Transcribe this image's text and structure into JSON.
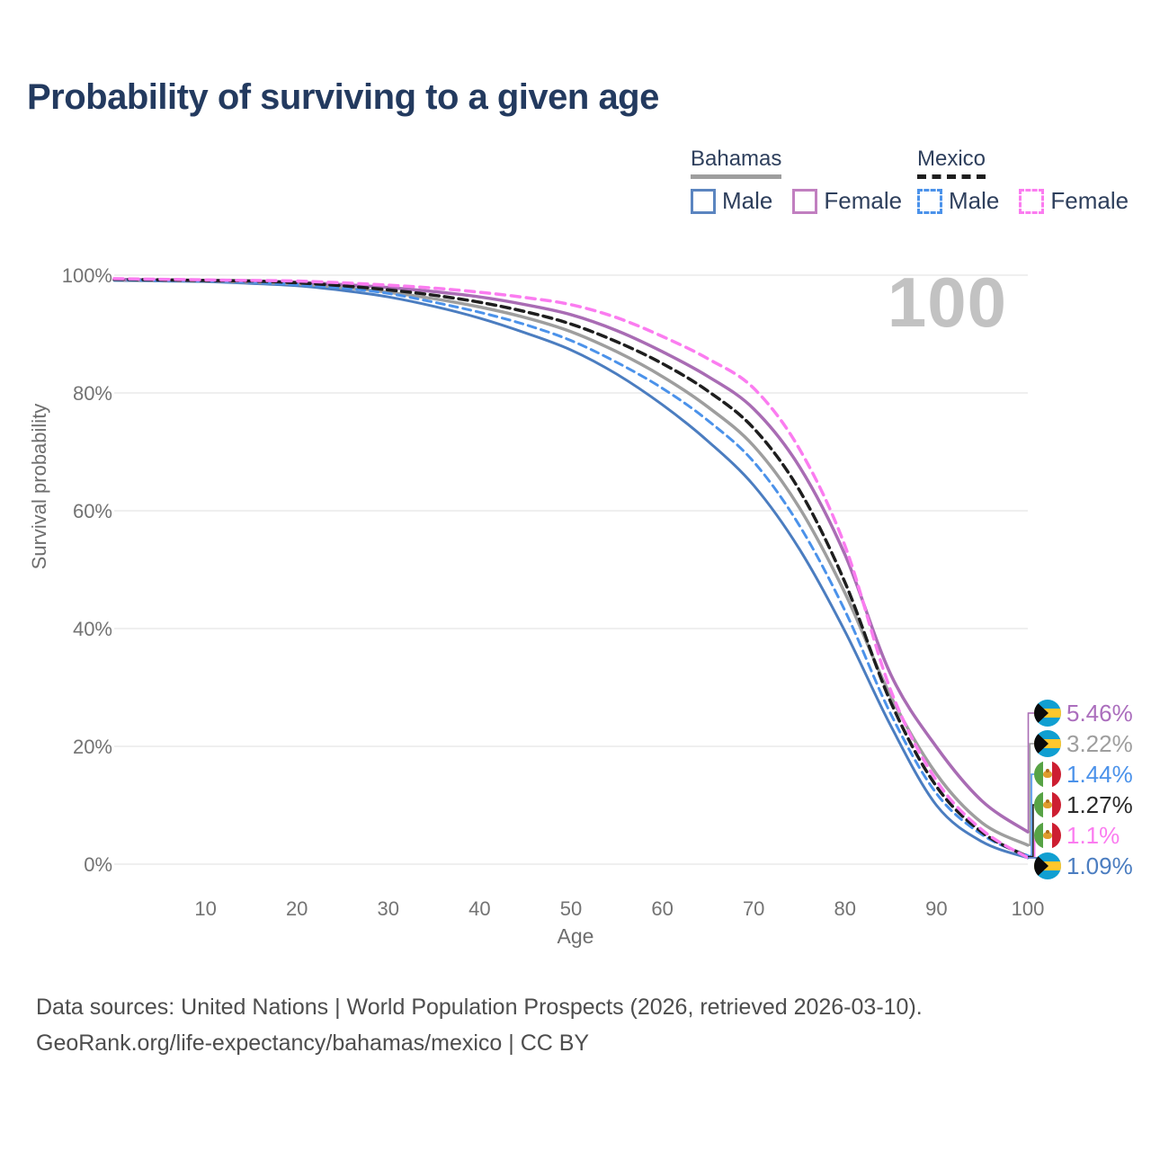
{
  "title": "Probability of surviving to a given age",
  "legend": {
    "groups": [
      {
        "title": "Bahamas",
        "line_style": "solid",
        "underline_color": "#9e9e9e",
        "items": [
          {
            "label": "Male",
            "color": "#5b85c0",
            "dashed": false
          },
          {
            "label": "Female",
            "color": "#c17fc0",
            "dashed": false
          }
        ]
      },
      {
        "title": "Mexico",
        "line_style": "dashed",
        "underline_color": "#1e1e1e",
        "items": [
          {
            "label": "Male",
            "color": "#4b92ea",
            "dashed": true
          },
          {
            "label": "Female",
            "color": "#fb7cf0",
            "dashed": true
          }
        ]
      }
    ]
  },
  "chart_data": {
    "type": "line",
    "title": "Probability of surviving to a given age",
    "xlabel": "Age",
    "ylabel": "Survival probability",
    "xlim": [
      0,
      100
    ],
    "ylim": [
      0,
      100
    ],
    "grid": "horizontal",
    "watermark": "100",
    "x_ticks": [
      10,
      20,
      30,
      40,
      50,
      60,
      70,
      80,
      90,
      100
    ],
    "y_ticks": [
      "0%",
      "20%",
      "40%",
      "60%",
      "80%",
      "100%"
    ],
    "x": [
      0,
      5,
      10,
      15,
      20,
      25,
      30,
      35,
      40,
      45,
      50,
      55,
      60,
      65,
      70,
      75,
      80,
      85,
      90,
      95,
      100
    ],
    "series": [
      {
        "id": "bahamas-male",
        "name": "Bahamas Male",
        "country": "Bahamas",
        "sex": "Male",
        "color": "#4b7dc0",
        "dash": null,
        "width": 3,
        "values": [
          99.1,
          99.0,
          98.9,
          98.6,
          98.2,
          97.4,
          96.3,
          94.7,
          92.7,
          90.2,
          87.3,
          83.2,
          78.0,
          71.8,
          64.3,
          53.5,
          39.5,
          23.5,
          10.0,
          3.8,
          1.09
        ]
      },
      {
        "id": "bahamas-total",
        "name": "Bahamas",
        "country": "Bahamas",
        "sex": "Both",
        "color": "#9e9e9e",
        "dash": null,
        "width": 3.5,
        "values": [
          99.2,
          99.1,
          99.0,
          98.8,
          98.5,
          97.9,
          97.1,
          96.0,
          94.6,
          92.8,
          90.4,
          87.0,
          82.8,
          77.6,
          71.0,
          60.5,
          46.0,
          28.5,
          15.3,
          7.0,
          3.22
        ]
      },
      {
        "id": "bahamas-female",
        "name": "Bahamas Female",
        "country": "Bahamas",
        "sex": "Female",
        "color": "#a96cb4",
        "dash": null,
        "width": 3.5,
        "values": [
          99.3,
          99.2,
          99.1,
          99.0,
          98.8,
          98.4,
          97.9,
          97.2,
          96.3,
          95.0,
          93.3,
          90.6,
          87.0,
          82.8,
          77.3,
          67.5,
          52.5,
          32.2,
          19.9,
          10.7,
          5.46
        ]
      },
      {
        "id": "mexico-male",
        "name": "Mexico Male",
        "country": "Mexico",
        "sex": "Male",
        "color": "#4b92ea",
        "dash": "9 6",
        "width": 3,
        "values": [
          99.2,
          99.1,
          99.0,
          98.8,
          98.4,
          97.8,
          96.9,
          95.4,
          93.7,
          91.6,
          88.9,
          85.2,
          80.8,
          75.3,
          68.3,
          57.5,
          43.0,
          25.5,
          12.0,
          5.0,
          1.44
        ]
      },
      {
        "id": "mexico-total",
        "name": "Mexico",
        "country": "Mexico",
        "sex": "Both",
        "color": "#1e1e1e",
        "dash": "10 6",
        "width": 3.5,
        "values": [
          99.3,
          99.2,
          99.1,
          99.0,
          98.7,
          98.2,
          97.5,
          96.6,
          95.4,
          93.8,
          91.7,
          88.7,
          85.0,
          80.3,
          74.0,
          63.5,
          47.8,
          27.5,
          13.2,
          5.4,
          1.27
        ]
      },
      {
        "id": "mexico-female",
        "name": "Mexico Female",
        "country": "Mexico",
        "sex": "Female",
        "color": "#fb7cf0",
        "dash": "10 7",
        "width": 3.5,
        "values": [
          99.4,
          99.3,
          99.2,
          99.1,
          99.0,
          98.7,
          98.3,
          97.8,
          97.1,
          96.2,
          95.0,
          92.8,
          89.6,
          85.8,
          80.8,
          70.5,
          54.0,
          29.5,
          14.2,
          5.8,
          1.1
        ]
      }
    ],
    "end_labels": [
      {
        "series": "bahamas-female",
        "text": "5.46%",
        "color": "#ab6ebd",
        "flag": "bahamas"
      },
      {
        "series": "bahamas-total",
        "text": "3.22%",
        "color": "#9e9e9e",
        "flag": "bahamas"
      },
      {
        "series": "mexico-male",
        "text": "1.44%",
        "color": "#4b92ea",
        "flag": "mexico"
      },
      {
        "series": "mexico-total",
        "text": "1.27%",
        "color": "#2a2a2a",
        "flag": "mexico"
      },
      {
        "series": "mexico-female",
        "text": "1.1%",
        "color": "#fb7cf0",
        "flag": "mexico"
      },
      {
        "series": "bahamas-male",
        "text": "1.09%",
        "color": "#4b7dc0",
        "flag": "bahamas"
      }
    ]
  },
  "footer": {
    "line1": "Data sources: United Nations | World Population Prospects (2026, retrieved 2026-03-10).",
    "line2": "GeoRank.org/life-expectancy/bahamas/mexico | CC BY"
  }
}
